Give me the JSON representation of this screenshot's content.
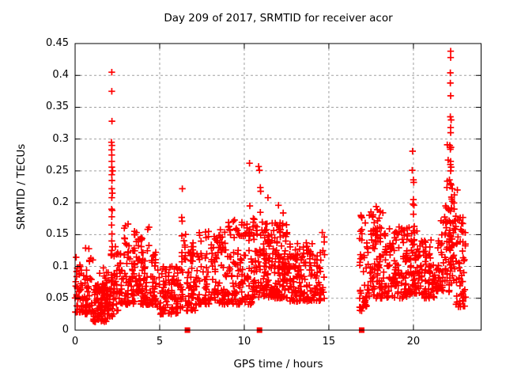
{
  "chart_data": {
    "type": "scatter",
    "title": "Day 209 of 2017, SRMTID for receiver acor",
    "xlabel": "GPS time / hours",
    "ylabel": "SRMTID / TECUs",
    "xlim": [
      0,
      24
    ],
    "ylim": [
      0,
      0.45
    ],
    "xticks": [
      0,
      5,
      10,
      15,
      20
    ],
    "xtick_labels": [
      "0",
      "5",
      "10",
      "15",
      "20"
    ],
    "yticks": [
      0,
      0.05,
      0.1,
      0.15,
      0.2,
      0.25,
      0.3,
      0.35,
      0.4,
      0.45
    ],
    "ytick_labels": [
      "0",
      "0.05",
      "0.1",
      "0.15",
      "0.2",
      "0.25",
      "0.3",
      "0.35",
      "0.4",
      "0.45"
    ],
    "grid": "dashed-major-both",
    "legend": "none",
    "colors": {
      "marker": "#ff0000",
      "grid": "#a0a0a0",
      "border": "#000000",
      "background": "#ffffff",
      "text": "#000000"
    },
    "series": [
      {
        "name": "srmtid-plus-markers",
        "marker": "plus",
        "color": "#ff0000",
        "outlier_points": [
          [
            2.17,
            0.405
          ],
          [
            2.17,
            0.375
          ],
          [
            2.18,
            0.328
          ],
          [
            2.15,
            0.295
          ],
          [
            2.18,
            0.29
          ],
          [
            2.16,
            0.283
          ],
          [
            2.17,
            0.275
          ],
          [
            2.17,
            0.265
          ],
          [
            2.17,
            0.256
          ],
          [
            2.22,
            0.25
          ],
          [
            2.17,
            0.244
          ],
          [
            2.18,
            0.235
          ],
          [
            2.17,
            0.222
          ],
          [
            2.2,
            0.215
          ],
          [
            2.17,
            0.208
          ],
          [
            2.16,
            0.19
          ],
          [
            2.19,
            0.188
          ],
          [
            2.17,
            0.178
          ],
          [
            2.16,
            0.165
          ],
          [
            2.18,
            0.151
          ],
          [
            2.17,
            0.14
          ],
          [
            2.2,
            0.131
          ],
          [
            2.17,
            0.125
          ],
          [
            2.18,
            0.118
          ],
          [
            2.38,
            0.131
          ],
          [
            2.45,
            0.119
          ],
          [
            3.5,
            0.15
          ],
          [
            3.62,
            0.139
          ],
          [
            6.34,
            0.222
          ],
          [
            6.3,
            0.177
          ],
          [
            6.33,
            0.171
          ],
          [
            6.31,
            0.148
          ],
          [
            6.97,
            0.137
          ],
          [
            6.98,
            0.131
          ],
          [
            6.96,
            0.126
          ],
          [
            6.99,
            0.121
          ],
          [
            6.97,
            0.116
          ],
          [
            9.07,
            0.169
          ],
          [
            9.1,
            0.163
          ],
          [
            9.13,
            0.158
          ],
          [
            10.31,
            0.262
          ],
          [
            10.33,
            0.195
          ],
          [
            10.85,
            0.257
          ],
          [
            10.9,
            0.251
          ],
          [
            10.95,
            0.224
          ],
          [
            10.97,
            0.218
          ],
          [
            10.95,
            0.185
          ],
          [
            11.4,
            0.208
          ],
          [
            12.02,
            0.196
          ],
          [
            12.3,
            0.184
          ],
          [
            17.8,
            0.194
          ],
          [
            18.1,
            0.16
          ],
          [
            17.62,
            0.152
          ],
          [
            17.75,
            0.149
          ],
          [
            17.9,
            0.146
          ],
          [
            19.15,
            0.162
          ],
          [
            19.3,
            0.155
          ],
          [
            19.45,
            0.149
          ],
          [
            19.95,
            0.281
          ],
          [
            19.93,
            0.251
          ],
          [
            20.0,
            0.236
          ],
          [
            20.02,
            0.232
          ],
          [
            20.0,
            0.205
          ],
          [
            19.97,
            0.198
          ],
          [
            20.03,
            0.196
          ],
          [
            20.0,
            0.182
          ],
          [
            20.05,
            0.163
          ],
          [
            22.0,
            0.291
          ],
          [
            22.05,
            0.267
          ],
          [
            22.0,
            0.234
          ],
          [
            21.98,
            0.224
          ],
          [
            21.9,
            0.195
          ],
          [
            21.95,
            0.192
          ],
          [
            22.06,
            0.19
          ],
          [
            22.2,
            0.438
          ],
          [
            22.2,
            0.428
          ],
          [
            22.18,
            0.404
          ],
          [
            22.18,
            0.388
          ],
          [
            22.2,
            0.368
          ],
          [
            22.18,
            0.335
          ],
          [
            22.23,
            0.33
          ],
          [
            22.2,
            0.318
          ],
          [
            22.2,
            0.31
          ],
          [
            22.15,
            0.29
          ],
          [
            22.22,
            0.287
          ],
          [
            22.18,
            0.284
          ],
          [
            22.2,
            0.265
          ],
          [
            22.18,
            0.26
          ],
          [
            22.23,
            0.256
          ],
          [
            22.2,
            0.25
          ],
          [
            22.13,
            0.236
          ],
          [
            22.2,
            0.23
          ],
          [
            22.23,
            0.228
          ],
          [
            22.3,
            0.222
          ],
          [
            22.6,
            0.22
          ]
        ],
        "band_format": [
          "x_start_hours",
          "x_end_hours",
          "point_count",
          "y_min",
          "y_max",
          "low_skew_power"
        ],
        "density_bands": [
          [
            0.0,
            0.5,
            40,
            0.028,
            0.115,
            1.8
          ],
          [
            0.5,
            1.05,
            45,
            0.025,
            0.13,
            1.8
          ],
          [
            1.05,
            2.1,
            110,
            0.013,
            0.075,
            1.5
          ],
          [
            1.3,
            2.05,
            15,
            0.06,
            0.1,
            1.2
          ],
          [
            2.1,
            2.3,
            18,
            0.02,
            0.12,
            1.2
          ],
          [
            2.3,
            2.65,
            25,
            0.03,
            0.13,
            1.6
          ],
          [
            2.65,
            4.8,
            160,
            0.04,
            0.125,
            1.6
          ],
          [
            2.8,
            4.5,
            25,
            0.115,
            0.168,
            1.3
          ],
          [
            4.8,
            6.25,
            100,
            0.025,
            0.1,
            1.5
          ],
          [
            6.25,
            6.55,
            20,
            0.035,
            0.155,
            1.3
          ],
          [
            6.55,
            7.25,
            55,
            0.03,
            0.135,
            1.5
          ],
          [
            7.25,
            8.35,
            75,
            0.04,
            0.155,
            1.6
          ],
          [
            8.35,
            10.45,
            150,
            0.04,
            0.16,
            1.6
          ],
          [
            9.0,
            10.3,
            18,
            0.148,
            0.175,
            1.2
          ],
          [
            10.45,
            11.15,
            55,
            0.05,
            0.18,
            1.4
          ],
          [
            11.15,
            12.55,
            170,
            0.05,
            0.17,
            1.5
          ],
          [
            12.55,
            14.5,
            160,
            0.045,
            0.138,
            1.5
          ],
          [
            14.5,
            14.78,
            15,
            0.05,
            0.155,
            1.3
          ],
          [
            16.8,
            17.25,
            40,
            0.03,
            0.185,
            1.4
          ],
          [
            17.25,
            18.25,
            90,
            0.05,
            0.19,
            1.5
          ],
          [
            18.25,
            19.6,
            110,
            0.05,
            0.165,
            1.5
          ],
          [
            19.6,
            20.25,
            60,
            0.055,
            0.165,
            1.4
          ],
          [
            20.25,
            21.6,
            100,
            0.05,
            0.145,
            1.5
          ],
          [
            21.6,
            22.15,
            45,
            0.06,
            0.19,
            1.3
          ],
          [
            22.15,
            22.45,
            40,
            0.07,
            0.22,
            1.2
          ],
          [
            22.45,
            23.1,
            60,
            0.035,
            0.18,
            1.7
          ]
        ],
        "data_gap_hours": [
          14.78,
          16.8
        ]
      },
      {
        "name": "baseline-square-markers",
        "marker": "filled-square",
        "color": "#ff0000",
        "points": [
          [
            6.64,
            0
          ],
          [
            10.9,
            0
          ],
          [
            16.94,
            0
          ]
        ]
      }
    ]
  }
}
